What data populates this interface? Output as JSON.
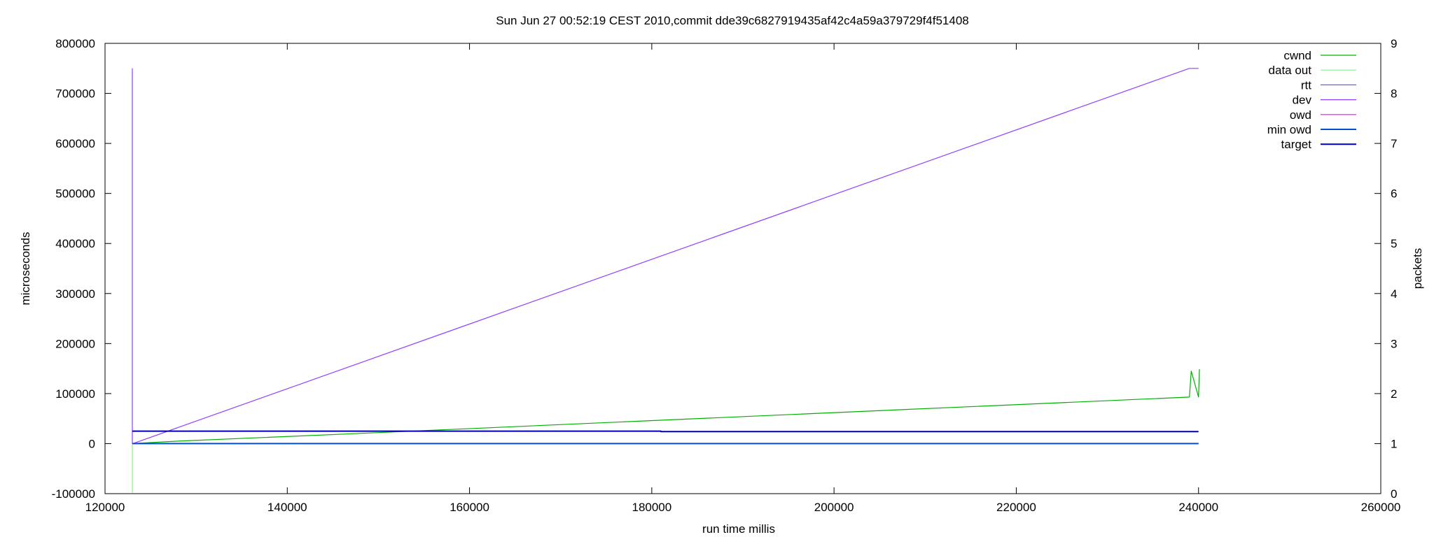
{
  "chart_data": {
    "type": "line",
    "title": "Sun Jun 27 00:52:19 CEST 2010,commit dde39c6827919435af42c4a59a379729f4f51408",
    "xlabel": "run time millis",
    "ylabel": "microseconds",
    "y2label": "packets",
    "xlim": [
      120000,
      260000
    ],
    "ylim": [
      -100000,
      800000
    ],
    "y2lim": [
      0,
      9
    ],
    "x_ticks": [
      "120000",
      "140000",
      "160000",
      "180000",
      "200000",
      "220000",
      "240000",
      "260000"
    ],
    "y_ticks": [
      "-100000",
      "0",
      "100000",
      "200000",
      "300000",
      "400000",
      "500000",
      "600000",
      "700000",
      "800000"
    ],
    "y2_ticks": [
      "0",
      "1",
      "2",
      "3",
      "4",
      "5",
      "6",
      "7",
      "8",
      "9"
    ],
    "grid": false,
    "legend_position": "top-right",
    "series": [
      {
        "name": "cwnd",
        "color": "#00b000",
        "width": 1.2,
        "x": [
          123000,
          128000,
          150000,
          200000,
          239000,
          239200,
          240000,
          240100,
          240000
        ],
        "y": [
          1.0,
          1.05,
          1.22,
          1.62,
          1.93,
          2.45,
          1.93,
          2.48,
          1.93
        ]
      },
      {
        "name": "data out",
        "color": "#90ee90",
        "width": 1.2,
        "x": [
          123000,
          123000
        ],
        "y": [
          0.02,
          1.0
        ]
      },
      {
        "name": "rtt",
        "color": "#6060ff",
        "width": 1.2,
        "x": [
          123000,
          240000
        ],
        "y": [
          0,
          0
        ]
      },
      {
        "name": "dev",
        "color": "#9040ff",
        "width": 1.2,
        "x": [
          123000,
          123000,
          123050,
          239000,
          240000
        ],
        "y": [
          750000,
          0,
          0,
          750000,
          750000
        ]
      },
      {
        "name": "owd",
        "color": "#ff00ff",
        "width": 1.2,
        "x": [
          123000,
          240000
        ],
        "y": [
          0,
          0
        ]
      },
      {
        "name": "min owd",
        "color": "#0050d0",
        "width": 2.0,
        "x": [
          123000,
          240000
        ],
        "y": [
          0,
          0
        ]
      },
      {
        "name": "target",
        "color": "#0000b0",
        "width": 2.0,
        "x": [
          123000,
          181000,
          181000,
          240000
        ],
        "y": [
          25000,
          25000,
          24000,
          24000
        ]
      }
    ]
  }
}
